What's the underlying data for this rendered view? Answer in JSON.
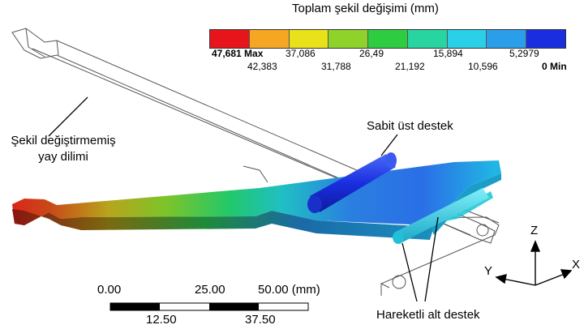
{
  "legend": {
    "title": "Toplam şekil değişimi (mm)",
    "colors": [
      "#e8141b",
      "#f5a623",
      "#e9e21a",
      "#8fd22a",
      "#2ecc40",
      "#28d4a0",
      "#2ad0e8",
      "#2a9ee8",
      "#1a2ee0"
    ],
    "upper_ticks": [
      "47,681 Max",
      "37,086",
      "26,49",
      "15,894",
      "5,2979"
    ],
    "lower_ticks": [
      "42,383",
      "31,788",
      "21,192",
      "10,596",
      "0 Min"
    ]
  },
  "labels": {
    "undeformed": [
      "Şekil değiştirmemiş",
      "yay dilimi"
    ],
    "fixed_support": "Sabit üst destek",
    "moving_support": "Hareketli alt destek"
  },
  "scale": {
    "top": [
      "0.00",
      "25.00",
      "50.00 (mm)"
    ],
    "bottom": [
      "12.50",
      "37.50"
    ]
  },
  "axes": {
    "z": "Z",
    "y": "Y",
    "x": "X"
  }
}
